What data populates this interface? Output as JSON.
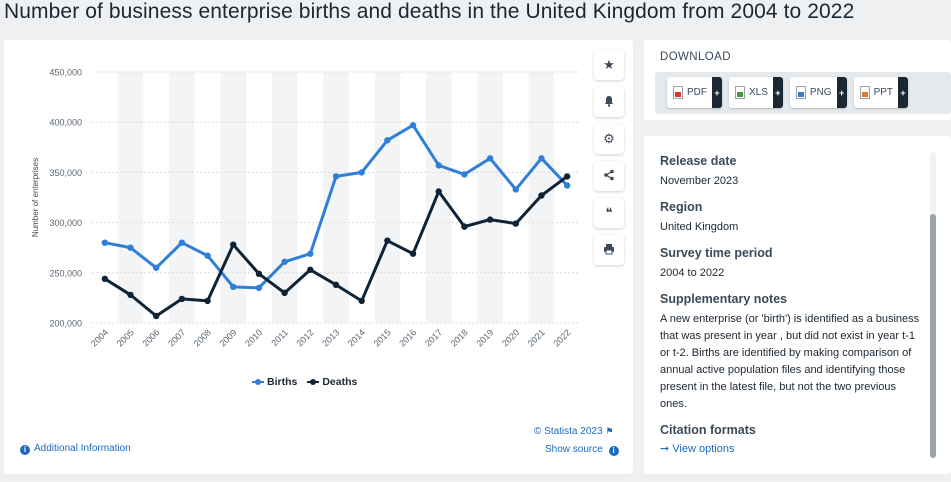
{
  "page": {
    "title": "Number of business enterprise births and deaths in the United Kingdom from 2004 to 2022"
  },
  "chart_data": {
    "type": "line",
    "title": "Number of business enterprise births and deaths in the United Kingdom from 2004 to 2022",
    "xlabel": "",
    "ylabel": "Number of enterprises",
    "categories": [
      "2004",
      "2005",
      "2006",
      "2007",
      "2008",
      "2009",
      "2010",
      "2011",
      "2012",
      "2013",
      "2014",
      "2015",
      "2016",
      "2017",
      "2018",
      "2019",
      "2020",
      "2021",
      "2022"
    ],
    "series": [
      {
        "name": "Births",
        "color": "#2f7ed8",
        "values": [
          280000,
          275000,
          255000,
          280000,
          267000,
          236000,
          235000,
          261000,
          269000,
          346000,
          350000,
          382000,
          397000,
          357000,
          348000,
          364000,
          333000,
          364000,
          337000
        ]
      },
      {
        "name": "Deaths",
        "color": "#0e2436",
        "values": [
          244000,
          228000,
          207000,
          224000,
          222000,
          278000,
          249000,
          230000,
          253000,
          238000,
          222000,
          282000,
          269000,
          331000,
          296000,
          303000,
          299000,
          327000,
          346000
        ]
      }
    ],
    "y_ticks": [
      "200,000",
      "250,000",
      "300,000",
      "350,000",
      "400,000",
      "450,000"
    ],
    "y_tick_values": [
      200000,
      250000,
      300000,
      350000,
      400000,
      450000
    ],
    "ylim": [
      200000,
      450000
    ],
    "grid": true,
    "legend_position": "bottom-center"
  },
  "chart_footer": {
    "credit": "© Statista 2023",
    "show_source": "Show source",
    "additional_info": "Additional Information"
  },
  "tools": [
    {
      "name": "favorite",
      "icon": "star-icon",
      "glyph": "★"
    },
    {
      "name": "notification",
      "icon": "bell-icon",
      "glyph": "🔔"
    },
    {
      "name": "settings",
      "icon": "gear-icon",
      "glyph": "⚙"
    },
    {
      "name": "share",
      "icon": "share-icon",
      "glyph": "⋖"
    },
    {
      "name": "cite",
      "icon": "quote-icon",
      "glyph": "❝"
    },
    {
      "name": "print",
      "icon": "printer-icon",
      "glyph": "⎙"
    }
  ],
  "download": {
    "title": "DOWNLOAD",
    "buttons": [
      {
        "label": "PDF",
        "plus": "+"
      },
      {
        "label": "XLS",
        "plus": "+"
      },
      {
        "label": "PNG",
        "plus": "+"
      },
      {
        "label": "PPT",
        "plus": "+"
      }
    ]
  },
  "info": {
    "release_date_label": "Release date",
    "release_date": "November 2023",
    "region_label": "Region",
    "region": "United Kingdom",
    "survey_period_label": "Survey time period",
    "survey_period": "2004 to 2022",
    "notes_label": "Supplementary notes",
    "notes": "A new enterprise (or 'birth') is identified as a business that was present in year , but did not exist in year t-1 or t-2. Births are identified by making comparison of annual active population files and identifying those present in the latest file, but not the two previous ones.",
    "citation_label": "Citation formats",
    "citation_link": "View options",
    "arrow": "➞"
  }
}
